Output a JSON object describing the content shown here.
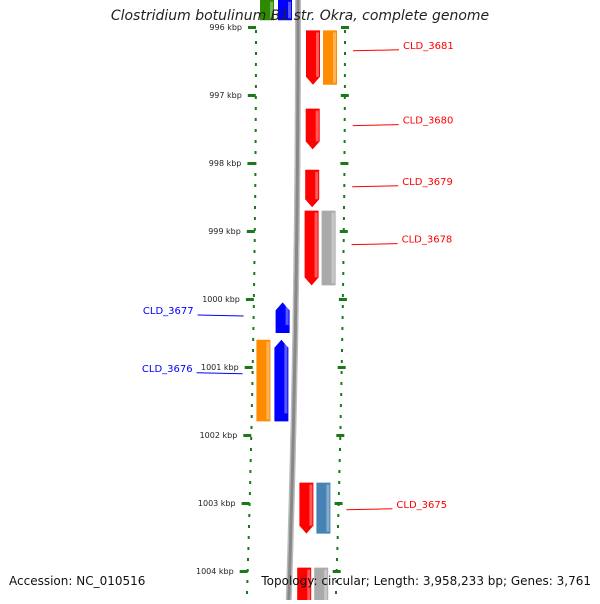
{
  "title": "Clostridium botulinum B1 str. Okra, complete genome",
  "footer": {
    "accession": "Accession: NC_010516",
    "topology": "Topology: circular; Length: 3,958,233 bp; Genes: 3,761"
  },
  "colors": {
    "forward_cds": "#ff0000",
    "reverse_cds": "#0000ff",
    "orange_feature": "#ff8c00",
    "gray_feature": "#aaaaaa",
    "steelblue_feature": "#4682b4",
    "green_feature": "#2e8b00",
    "tick_color": "#1a7a1a",
    "backbone": "#888888"
  },
  "kbp_ticks": [
    "996 kbp",
    "997 kbp",
    "998 kbp",
    "999 kbp",
    "1000 kbp",
    "1001 kbp",
    "1002 kbp",
    "1003 kbp",
    "1004 kbp"
  ],
  "kbp_start": 996,
  "forward_labels": [
    {
      "id": "CLD_3681",
      "kbp": 996.35
    },
    {
      "id": "CLD_3680",
      "kbp": 997.45
    },
    {
      "id": "CLD_3679",
      "kbp": 998.35
    },
    {
      "id": "CLD_3678",
      "kbp": 999.2
    },
    {
      "id": "CLD_3675",
      "kbp": 1003.1
    }
  ],
  "reverse_labels": [
    {
      "id": "CLD_3677",
      "kbp": 1000.25
    },
    {
      "id": "CLD_3676",
      "kbp": 1001.1
    }
  ],
  "features": [
    {
      "lane": 0,
      "start": 996.05,
      "end": 996.85,
      "kind": "forward",
      "arrow": "down"
    },
    {
      "lane": 1,
      "start": 996.05,
      "end": 996.85,
      "kind": "orange",
      "arrow": "none"
    },
    {
      "lane": 0,
      "start": 997.2,
      "end": 997.8,
      "kind": "forward",
      "arrow": "down"
    },
    {
      "lane": 0,
      "start": 998.1,
      "end": 998.65,
      "kind": "forward",
      "arrow": "down"
    },
    {
      "lane": 0,
      "start": 998.7,
      "end": 999.8,
      "kind": "forward",
      "arrow": "down"
    },
    {
      "lane": 1,
      "start": 998.7,
      "end": 999.8,
      "kind": "gray",
      "arrow": "none"
    },
    {
      "lane": -1,
      "start": 1000.05,
      "end": 1000.5,
      "kind": "reverse",
      "arrow": "up"
    },
    {
      "lane": -1,
      "start": 1000.6,
      "end": 1001.8,
      "kind": "reverse",
      "arrow": "up"
    },
    {
      "lane": -2,
      "start": 1000.6,
      "end": 1001.8,
      "kind": "orange",
      "arrow": "none"
    },
    {
      "lane": 0,
      "start": 1002.7,
      "end": 1003.45,
      "kind": "forward",
      "arrow": "down"
    },
    {
      "lane": 1,
      "start": 1002.7,
      "end": 1003.45,
      "kind": "steelblue",
      "arrow": "none"
    },
    {
      "lane": 0,
      "start": 1003.95,
      "end": 1004.5,
      "kind": "forward",
      "arrow": "none"
    },
    {
      "lane": 1,
      "start": 1003.95,
      "end": 1004.5,
      "kind": "gray",
      "arrow": "none"
    },
    {
      "lane": -2,
      "start": 995.6,
      "end": 995.9,
      "kind": "green",
      "arrow": "none"
    },
    {
      "lane": -1,
      "start": 995.6,
      "end": 995.9,
      "kind": "reverse",
      "arrow": "none"
    }
  ]
}
